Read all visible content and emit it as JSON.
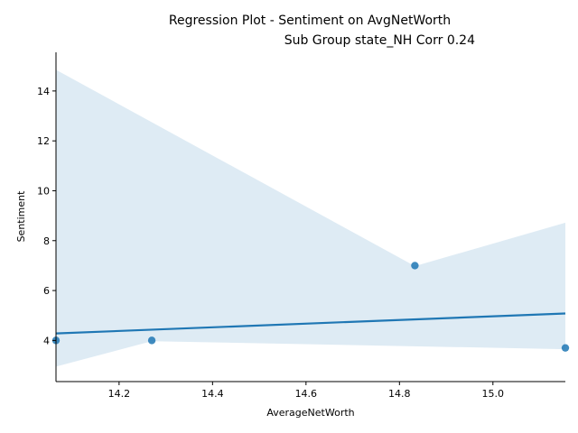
{
  "chart_data": {
    "type": "scatter",
    "title": "Regression Plot - Sentiment on AvgNetWorth",
    "subtitle": "Sub Group state_NH Corr 0.24",
    "xlabel": "AverageNetWorth",
    "ylabel": "Sentiment",
    "xlim": [
      14.065,
      15.155
    ],
    "ylim": [
      2.35,
      15.55
    ],
    "xticks": [
      "14.2",
      "14.4",
      "14.6",
      "14.8",
      "15.0"
    ],
    "yticks": [
      "4",
      "6",
      "8",
      "10",
      "12",
      "14"
    ],
    "grid": false,
    "colors": {
      "points": "#1f77b4",
      "line": "#1f77b4",
      "band": "#1f77b4"
    },
    "points": [
      {
        "x": 14.065,
        "y": 4.0
      },
      {
        "x": 14.27,
        "y": 4.0
      },
      {
        "x": 14.833,
        "y": 7.0
      },
      {
        "x": 15.155,
        "y": 3.7
      }
    ],
    "regression_line": [
      {
        "x": 14.065,
        "y": 4.28
      },
      {
        "x": 15.155,
        "y": 5.08
      }
    ],
    "confidence_band": {
      "upper": [
        {
          "x": 14.065,
          "y": 14.85
        },
        {
          "x": 14.833,
          "y": 6.98
        },
        {
          "x": 15.155,
          "y": 8.72
        }
      ],
      "lower": [
        {
          "x": 14.065,
          "y": 2.95
        },
        {
          "x": 14.27,
          "y": 3.97
        },
        {
          "x": 15.155,
          "y": 3.65
        }
      ]
    }
  }
}
